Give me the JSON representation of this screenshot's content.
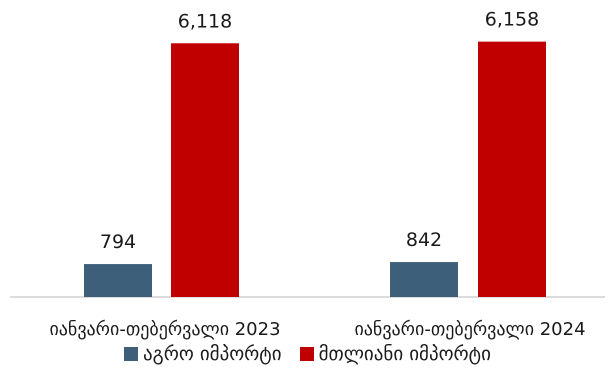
{
  "chart_data": {
    "type": "bar",
    "categories": [
      "იანვარი-თებერვალი 2023",
      "იანვარი-თებერვალი 2024"
    ],
    "series": [
      {
        "name": "აგრო იმპორტი",
        "values": [
          794,
          842
        ],
        "color": "#3d5f7a"
      },
      {
        "name": "მთლიანი იმპორტი",
        "values": [
          6118,
          6158
        ],
        "color": "#c00000"
      }
    ],
    "data_labels": [
      [
        "794",
        "842"
      ],
      [
        "6,118",
        "6,158"
      ]
    ],
    "ylim": [
      0,
      6800
    ],
    "grid": false,
    "legend_position": "bottom"
  }
}
